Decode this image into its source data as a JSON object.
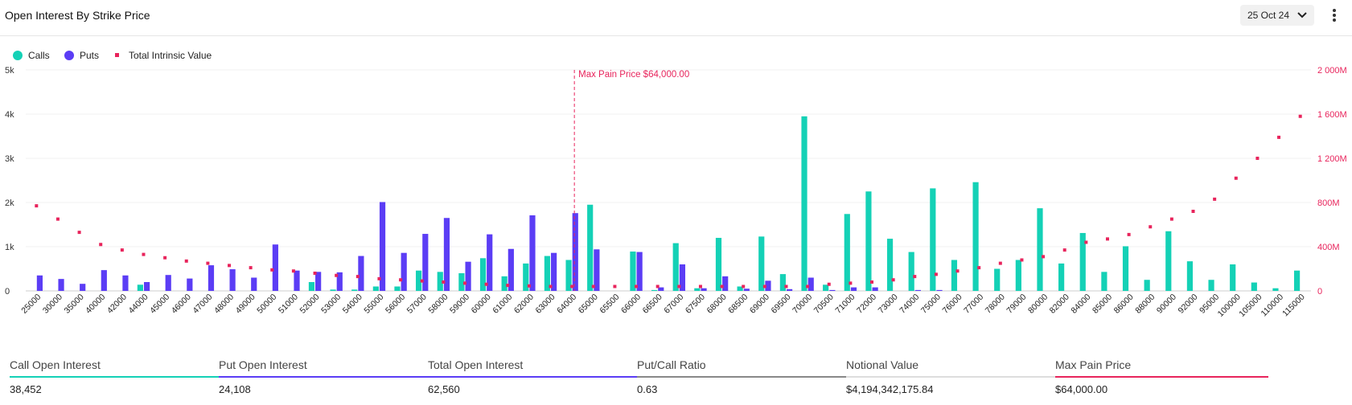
{
  "header": {
    "title": "Open Interest By Strike Price",
    "date": "25 Oct 24"
  },
  "legend": [
    {
      "label": "Calls",
      "color": "#14d1b6"
    },
    {
      "label": "Puts",
      "color": "#5b3df5"
    },
    {
      "label": "Total Intrinsic Value",
      "color": "#e8245c"
    }
  ],
  "chart_data": {
    "type": "bar",
    "categories": [
      "25000",
      "30000",
      "35000",
      "40000",
      "42000",
      "44000",
      "45000",
      "46000",
      "47000",
      "48000",
      "49000",
      "50000",
      "51000",
      "52000",
      "53000",
      "54000",
      "55000",
      "56000",
      "57000",
      "58000",
      "59000",
      "60000",
      "61000",
      "62000",
      "63000",
      "64000",
      "65000",
      "65500",
      "66000",
      "66500",
      "67000",
      "67500",
      "68000",
      "68500",
      "69000",
      "69500",
      "70000",
      "70500",
      "71000",
      "72000",
      "73000",
      "74000",
      "75000",
      "76000",
      "77000",
      "78000",
      "79000",
      "80000",
      "82000",
      "84000",
      "85000",
      "86000",
      "88000",
      "90000",
      "92000",
      "95000",
      "100000",
      "105000",
      "110000",
      "115000"
    ],
    "series": [
      {
        "name": "Calls",
        "color": "#14d1b6",
        "values": [
          0,
          0,
          0,
          0,
          0,
          140,
          0,
          0,
          0,
          0,
          0,
          0,
          0,
          200,
          30,
          30,
          100,
          100,
          460,
          430,
          400,
          740,
          330,
          620,
          790,
          700,
          1950,
          0,
          890,
          20,
          1080,
          60,
          1200,
          100,
          1230,
          380,
          3950,
          140,
          1740,
          2250,
          1180,
          880,
          2320,
          700,
          2460,
          500,
          700,
          1870,
          620,
          1310,
          430,
          1010,
          250,
          1350,
          670,
          250,
          600,
          190,
          60,
          460
        ]
      },
      {
        "name": "Puts",
        "color": "#5b3df5",
        "values": [
          350,
          270,
          160,
          470,
          350,
          200,
          360,
          280,
          580,
          490,
          300,
          1050,
          460,
          430,
          420,
          790,
          2010,
          860,
          1290,
          1650,
          660,
          1280,
          950,
          1710,
          860,
          1760,
          940,
          0,
          880,
          80,
          600,
          60,
          330,
          50,
          230,
          40,
          300,
          20,
          80,
          80,
          0,
          20,
          20,
          0,
          0,
          0,
          0,
          0,
          0,
          0,
          0,
          0,
          0,
          0,
          0,
          0,
          0,
          0,
          0,
          0
        ]
      },
      {
        "name": "Total Intrinsic Value",
        "color": "#e8245c",
        "values": [
          770,
          650,
          530,
          420,
          370,
          330,
          300,
          270,
          250,
          230,
          210,
          190,
          180,
          160,
          140,
          130,
          110,
          100,
          90,
          80,
          70,
          60,
          50,
          45,
          40,
          40,
          40,
          40,
          40,
          40,
          40,
          40,
          40,
          40,
          40,
          40,
          40,
          60,
          70,
          80,
          100,
          130,
          150,
          180,
          210,
          250,
          280,
          310,
          370,
          440,
          470,
          510,
          580,
          650,
          720,
          830,
          1020,
          1200,
          1390,
          1580
        ]
      }
    ],
    "y_left": {
      "ticks": [
        "0",
        "1k",
        "2k",
        "3k",
        "4k",
        "5k"
      ],
      "range": [
        0,
        5000
      ]
    },
    "y_right": {
      "ticks": [
        "0",
        "400M",
        "800M",
        "1 200M",
        "1 600M",
        "2 000M"
      ],
      "range": [
        0,
        2000
      ]
    },
    "annotation": {
      "label": "Max Pain Price $64,000.00",
      "at": "64000"
    }
  },
  "stats": [
    {
      "label": "Call Open Interest",
      "value": "38,452",
      "color": "#14d1b6"
    },
    {
      "label": "Put Open Interest",
      "value": "24,108",
      "color": "#5b3df5"
    },
    {
      "label": "Total Open Interest",
      "value": "62,560",
      "color": "#5b3df5"
    },
    {
      "label": "Put/Call Ratio",
      "value": "0.63",
      "color": "#888888"
    },
    {
      "label": "Notional Value",
      "value": "$4,194,342,175.84",
      "color": "#dddddd"
    },
    {
      "label": "Max Pain Price",
      "value": "$64,000.00",
      "color": "#e8245c"
    }
  ]
}
